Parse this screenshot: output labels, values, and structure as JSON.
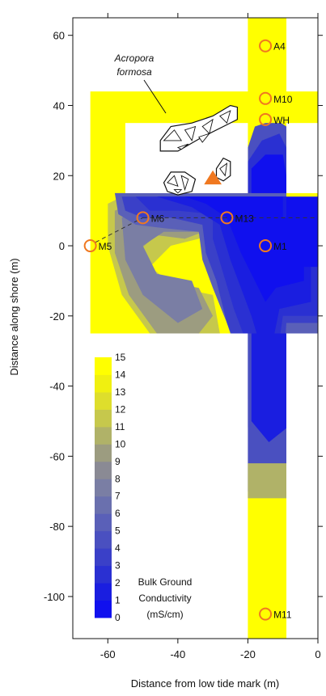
{
  "chart_data": {
    "type": "heatmap",
    "xlabel": "Distance from low tide mark (m)",
    "ylabel": "Distance along shore (m)",
    "xlim": [
      -70,
      0
    ],
    "ylim": [
      -112,
      65
    ],
    "x_ticks": [
      -60,
      -40,
      -20,
      0
    ],
    "y_ticks": [
      60,
      40,
      20,
      0,
      -20,
      -40,
      -60,
      -80,
      -100
    ],
    "colorbar": {
      "title_lines": [
        "Bulk Ground",
        "Conductivity",
        "(mS/cm)"
      ],
      "levels": [
        0,
        1,
        2,
        3,
        4,
        5,
        6,
        7,
        8,
        9,
        10,
        11,
        12,
        13,
        14,
        15
      ],
      "colors": [
        "#1010ee",
        "#1a1ee0",
        "#2a30d2",
        "#3a40c8",
        "#4a50c0",
        "#5a60b8",
        "#6a70ae",
        "#7a7ea4",
        "#8a8a94",
        "#9c9c80",
        "#b0b268",
        "#c6c84c",
        "#dede2c",
        "#f0f010",
        "#ffff00",
        "#ffff00"
      ]
    },
    "stations": [
      {
        "name": "A4",
        "x": -15,
        "y": 57
      },
      {
        "name": "M10",
        "x": -15,
        "y": 42
      },
      {
        "name": "WH",
        "x": -15,
        "y": 36
      },
      {
        "name": "M6",
        "x": -50,
        "y": 8
      },
      {
        "name": "M13",
        "x": -26,
        "y": 8
      },
      {
        "name": "M5",
        "x": -65,
        "y": 0
      },
      {
        "name": "M1",
        "x": -15,
        "y": 0
      },
      {
        "name": "M11",
        "x": -15,
        "y": -105
      }
    ],
    "annotation": {
      "lines": [
        "Acropora",
        "formosa"
      ]
    }
  }
}
